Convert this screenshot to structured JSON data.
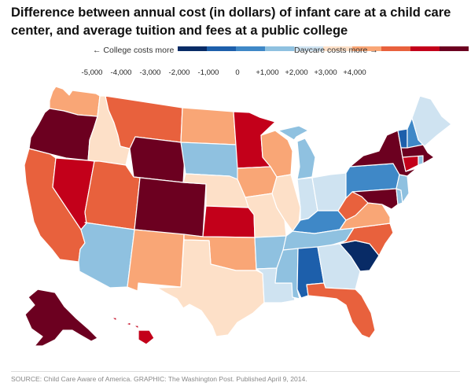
{
  "title": {
    "line1": "Difference between annual cost (in dollars) of infant care at a child care",
    "line2": "center, and average tuition and fees at a public college"
  },
  "legend": {
    "left_note": "← College costs more",
    "right_note": "Daycare costs more →",
    "bins": [
      {
        "label": "-5,000",
        "color": "#082b66"
      },
      {
        "label": "-4,000",
        "color": "#1d5fab"
      },
      {
        "label": "-3,000",
        "color": "#3f88c7"
      },
      {
        "label": "-2,000",
        "color": "#8fc1e0"
      },
      {
        "label": "-1,000",
        "color": "#cfe3f1"
      },
      {
        "label": "0",
        "color": "#fde0c8"
      },
      {
        "label": "+1,000",
        "color": "#f9a676"
      },
      {
        "label": "+2,000",
        "color": "#e8613d"
      },
      {
        "label": "+3,000",
        "color": "#c3001a"
      },
      {
        "label": "+4,000",
        "color": "#6c0020"
      }
    ]
  },
  "states": {
    "WA": {
      "bin": 6
    },
    "OR": {
      "bin": 9
    },
    "CA": {
      "bin": 7
    },
    "NV": {
      "bin": 8
    },
    "ID": {
      "bin": 5
    },
    "MT": {
      "bin": 7
    },
    "WY": {
      "bin": 9
    },
    "UT": {
      "bin": 7
    },
    "AZ": {
      "bin": 3
    },
    "CO": {
      "bin": 9
    },
    "NM": {
      "bin": 6
    },
    "ND": {
      "bin": 6
    },
    "SD": {
      "bin": 3
    },
    "NE": {
      "bin": 5
    },
    "KS": {
      "bin": 8
    },
    "OK": {
      "bin": 6
    },
    "TX": {
      "bin": 5
    },
    "MN": {
      "bin": 8
    },
    "IA": {
      "bin": 6
    },
    "MO": {
      "bin": 5
    },
    "AR": {
      "bin": 3
    },
    "LA": {
      "bin": 4
    },
    "WI": {
      "bin": 6
    },
    "IL": {
      "bin": 5
    },
    "MI": {
      "bin": 3
    },
    "IN": {
      "bin": 4
    },
    "OH": {
      "bin": 4
    },
    "KY": {
      "bin": 2
    },
    "TN": {
      "bin": 3
    },
    "MS": {
      "bin": 3
    },
    "AL": {
      "bin": 1
    },
    "GA": {
      "bin": 4
    },
    "FL": {
      "bin": 7
    },
    "SC": {
      "bin": 0
    },
    "NC": {
      "bin": 7
    },
    "VA": {
      "bin": 6
    },
    "WV": {
      "bin": 7
    },
    "MD": {
      "bin": 9
    },
    "DE": {
      "bin": 3
    },
    "PA": {
      "bin": 2
    },
    "NJ": {
      "bin": 3
    },
    "NY": {
      "bin": 9
    },
    "CT": {
      "bin": 8
    },
    "RI": {
      "bin": 3
    },
    "MA": {
      "bin": 9
    },
    "VT": {
      "bin": 1
    },
    "NH": {
      "bin": 2
    },
    "ME": {
      "bin": 4
    },
    "AK": {
      "bin": 9
    },
    "HI": {
      "bin": 8
    }
  },
  "source": "SOURCE: Child Care Aware of America. GRAPHIC: The Washington Post. Published April 9, 2014."
}
